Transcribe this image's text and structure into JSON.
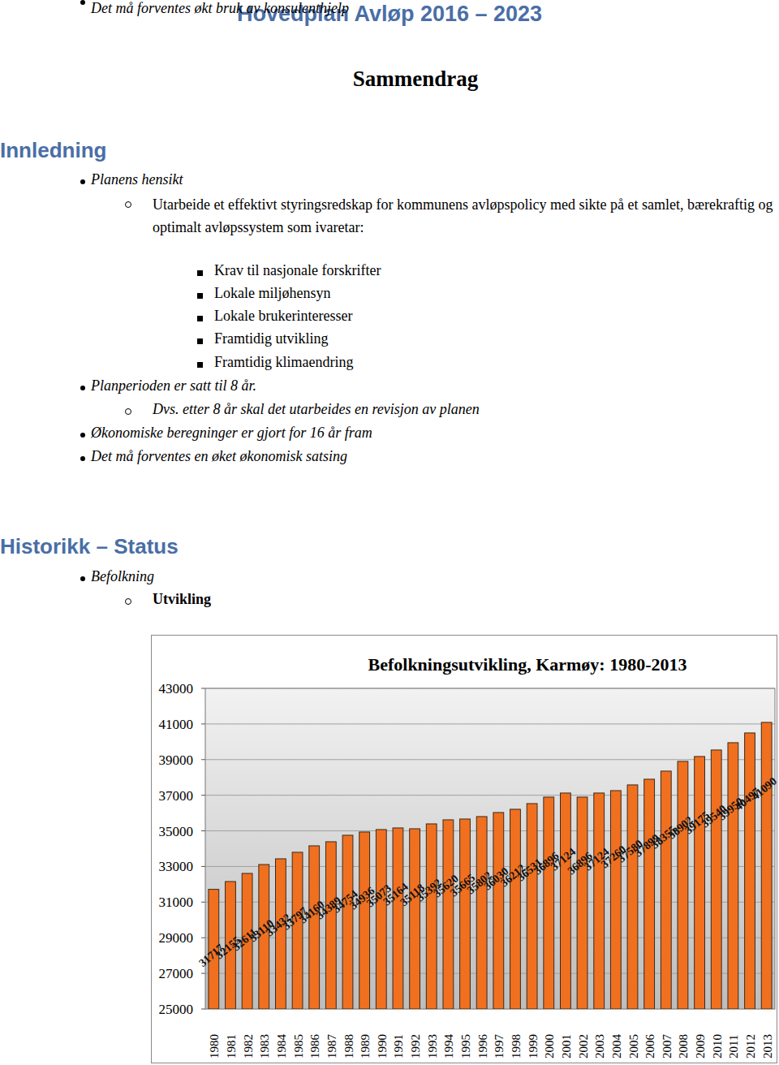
{
  "header": {
    "title": "Hovedplan Avløp 2016 – 2023",
    "subtitle": "Sammendrag"
  },
  "sections": [
    {
      "heading": "Innledning",
      "items": [
        {
          "text": "Planens hensikt",
          "children": [
            {
              "text": "Utarbeide et effektivt styringsredskap for kommunens avløpspolicy med sikte på et samlet, bærekraftig og optimalt avløpssystem som ivaretar:",
              "children": [
                {
                  "text": "Krav til nasjonale forskrifter"
                },
                {
                  "text": "Lokale miljøhensyn"
                },
                {
                  "text": "Lokale brukerinteresser"
                },
                {
                  "text": "Framtidig utvikling"
                },
                {
                  "text": "Framtidig klimaendring"
                }
              ]
            }
          ]
        },
        {
          "text": "Planperioden er satt til 8 år.",
          "children": [
            {
              "text": "Dvs. etter 8 år skal det utarbeides en  revisjon av planen"
            }
          ]
        },
        {
          "text": "Økonomiske beregninger er gjort for 16 år fram"
        },
        {
          "text": "Det må forventes en øket økonomisk satsing"
        },
        {
          "text": "Det må forventes økt bruk av konsulenthjelp"
        }
      ]
    },
    {
      "heading": "Historikk – Status",
      "items": [
        {
          "text": "Befolkning",
          "children": [
            {
              "text": "Utvikling"
            }
          ]
        }
      ]
    }
  ],
  "chart_data": {
    "type": "bar",
    "title": "Befolkningsutvikling, Karmøy: 1980-2013",
    "categories": [
      "1980",
      "1981",
      "1982",
      "1983",
      "1984",
      "1985",
      "1986",
      "1987",
      "1988",
      "1989",
      "1990",
      "1991",
      "1992",
      "1993",
      "1994",
      "1995",
      "1996",
      "1997",
      "1998",
      "1999",
      "2000",
      "2001",
      "2002",
      "2003",
      "2004",
      "2005",
      "2006",
      "2007",
      "2008",
      "2009",
      "2010",
      "2011",
      "2012",
      "2013"
    ],
    "values": [
      31717,
      32155,
      32611,
      33110,
      33432,
      33797,
      34160,
      34389,
      34754,
      34936,
      35073,
      35164,
      35118,
      35392,
      35620,
      35665,
      35802,
      36030,
      36212,
      36531,
      36896,
      37124,
      36896,
      37124,
      37260,
      37580,
      37899,
      38355,
      38902,
      39175,
      39540,
      39950,
      40497,
      41090
    ],
    "color": "#f07020",
    "ylim": [
      25000,
      43000
    ],
    "yticks": [
      25000,
      27000,
      29000,
      31000,
      33000,
      35000,
      37000,
      39000,
      41000,
      43000
    ],
    "grid": true,
    "data_labels": true
  }
}
